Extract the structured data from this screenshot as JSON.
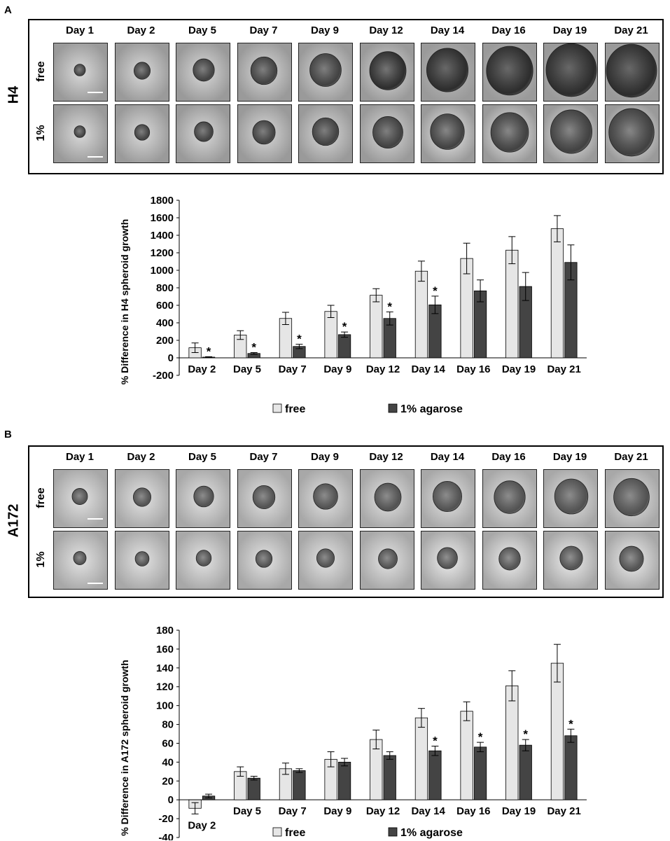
{
  "panels": [
    {
      "letter": "A",
      "cell_line": "H4",
      "days": [
        "Day 1",
        "Day 2",
        "Day 5",
        "Day 7",
        "Day 9",
        "Day 12",
        "Day 14",
        "Day 16",
        "Day 19",
        "Day 21"
      ],
      "rows": [
        "free",
        "1%"
      ],
      "tile_tone": {
        "bg_light": "#d9d9d9",
        "bg_dark": "#9a9a9a",
        "spheroid": "#3a3a3a"
      }
    },
    {
      "letter": "B",
      "cell_line": "A172",
      "days": [
        "Day 1",
        "Day 2",
        "Day 5",
        "Day 7",
        "Day 9",
        "Day 12",
        "Day 14",
        "Day 16",
        "Day 19",
        "Day 21"
      ],
      "rows": [
        "free",
        "1%"
      ],
      "tile_tone": {
        "bg_light": "#e3e3e3",
        "bg_dark": "#a8a8a8",
        "spheroid": "#4a4a4a"
      }
    }
  ],
  "chart_data": [
    {
      "type": "bar",
      "categories": [
        "Day 2",
        "Day 5",
        "Day 7",
        "Day 9",
        "Day 12",
        "Day 14",
        "Day 16",
        "Day 19",
        "Day 21"
      ],
      "series": [
        {
          "name": "free",
          "color": "#e6e6e6",
          "values": [
            115,
            260,
            450,
            530,
            715,
            990,
            1135,
            1230,
            1475
          ],
          "errors": [
            55,
            50,
            70,
            70,
            75,
            115,
            175,
            155,
            150
          ]
        },
        {
          "name": "1% agarose",
          "color": "#444444",
          "values": [
            8,
            50,
            130,
            265,
            450,
            605,
            765,
            815,
            1090
          ],
          "errors": [
            5,
            10,
            25,
            30,
            75,
            100,
            125,
            160,
            200
          ]
        }
      ],
      "significance": [
        true,
        true,
        true,
        true,
        true,
        true,
        false,
        false,
        false
      ],
      "significance_marker": "*",
      "ylabel": "% Difference in H4 spheroid growth",
      "ylim": [
        -200,
        1800
      ],
      "yticks": [
        -200,
        0,
        200,
        400,
        600,
        800,
        1000,
        1200,
        1400,
        1600,
        1800
      ],
      "legend_placement": "bottom"
    },
    {
      "type": "bar",
      "categories": [
        "Day 2",
        "Day 5",
        "Day 7",
        "Day 9",
        "Day 12",
        "Day 14",
        "Day 16",
        "Day 19",
        "Day 21"
      ],
      "series": [
        {
          "name": "free",
          "color": "#e6e6e6",
          "values": [
            -9,
            30,
            33,
            43,
            64,
            87,
            94,
            121,
            145
          ],
          "errors": [
            6,
            5,
            6,
            8,
            10,
            10,
            10,
            16,
            20
          ]
        },
        {
          "name": "1% agarose",
          "color": "#444444",
          "values": [
            4,
            23,
            31,
            40,
            47,
            52,
            56,
            58,
            68
          ],
          "errors": [
            2,
            2,
            2,
            4,
            4,
            5,
            5,
            6,
            7
          ]
        }
      ],
      "significance": [
        false,
        false,
        false,
        false,
        false,
        true,
        true,
        true,
        true
      ],
      "significance_marker": "*",
      "ylabel": "% Difference in A172 spheroid growth",
      "ylim": [
        -40,
        180
      ],
      "yticks": [
        -40,
        -20,
        0,
        20,
        40,
        60,
        80,
        100,
        120,
        140,
        160,
        180
      ],
      "legend_placement": "bottom"
    }
  ]
}
